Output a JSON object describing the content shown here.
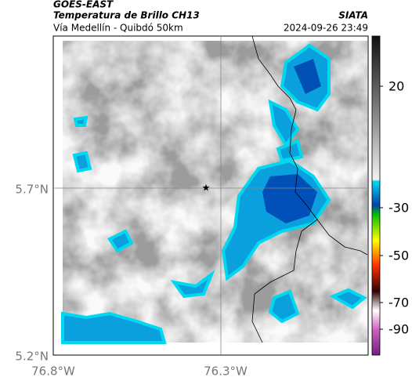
{
  "header": {
    "source": "GOES-EAST",
    "title": "Temperatura de Brillo CH13",
    "subtitle": "Vía Medellín - Quibdó 50km",
    "org": "SIATA",
    "datetime": "2024-09-26 23:49"
  },
  "map": {
    "lat_labels": [
      "5.7°N",
      "5.2°N"
    ],
    "lon_labels": [
      "76.8°W",
      "76.3°W"
    ]
  },
  "colorbar": {
    "labels": [
      "20",
      "-30",
      "-50",
      "-70",
      "-90"
    ]
  }
}
